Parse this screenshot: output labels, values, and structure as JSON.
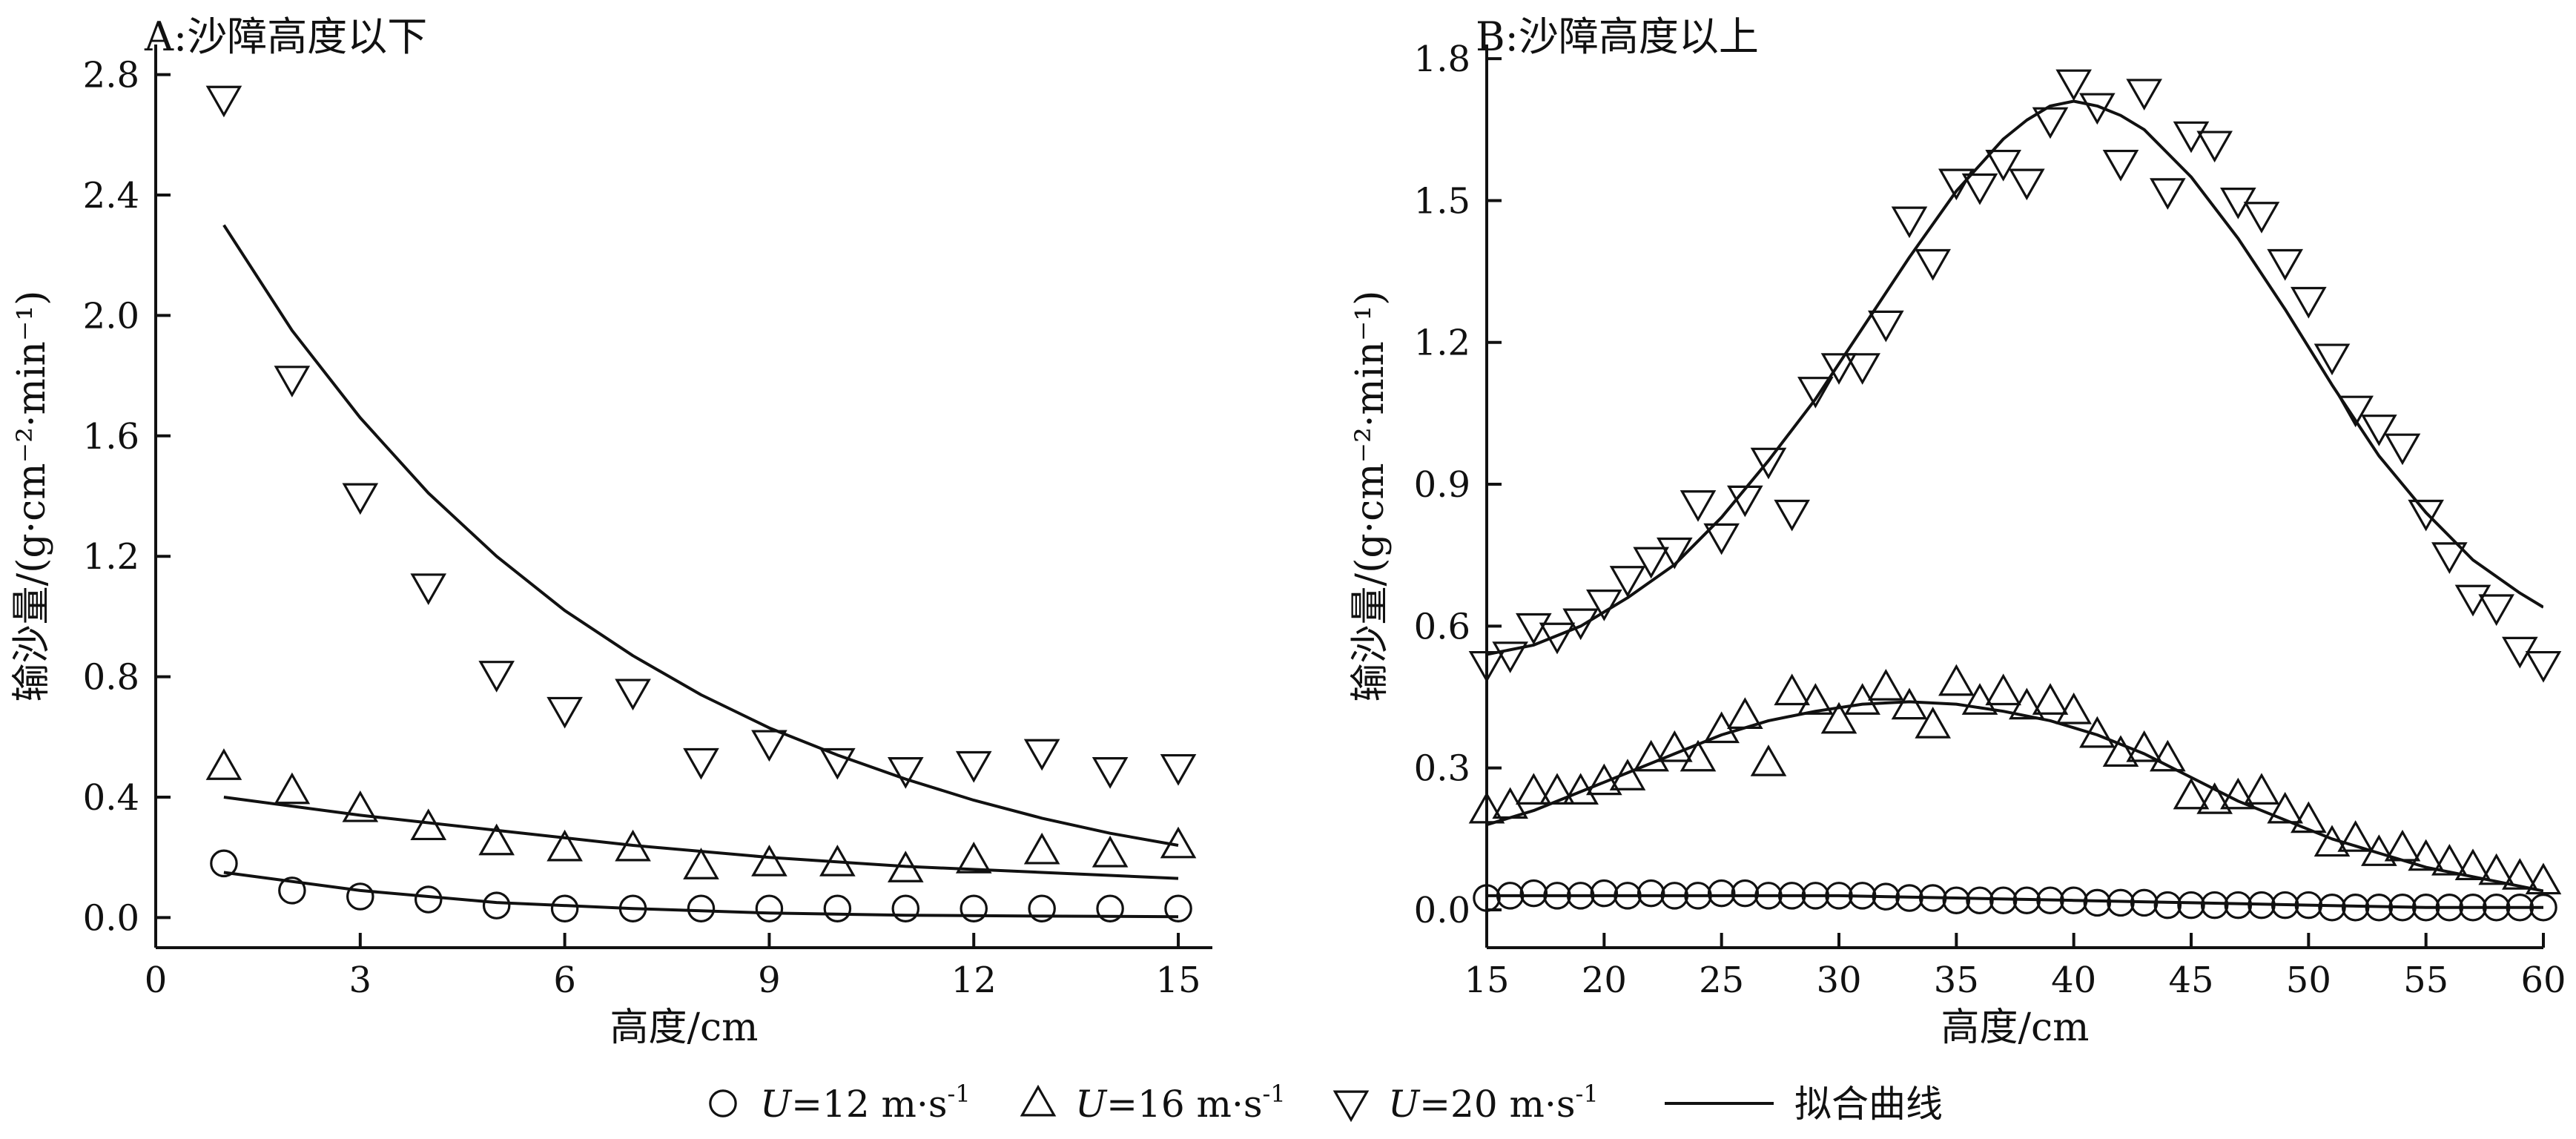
{
  "chart_data": [
    {
      "type": "scatter",
      "title": "A:沙障高度以下",
      "xlabel": "高度/cm",
      "ylabel": "输沙量/(g·cm⁻²·min⁻¹)",
      "xlim": [
        0,
        15.5
      ],
      "ylim": [
        -0.1,
        2.9
      ],
      "xticks": [
        0,
        3,
        6,
        9,
        12,
        15
      ],
      "xtick_labels": [
        "0",
        "3",
        "6",
        "9",
        "12",
        "15"
      ],
      "yticks": [
        0,
        0.4,
        0.8,
        1.2,
        1.6,
        2.0,
        2.4,
        2.8
      ],
      "ytick_labels": [
        "0.0",
        "0.4",
        "0.8",
        "1.2",
        "1.6",
        "2.0",
        "2.4",
        "2.8"
      ],
      "series": [
        {
          "name": "U=12 m·s⁻¹",
          "marker": "circle",
          "x": [
            1,
            2,
            3,
            4,
            5,
            6,
            7,
            8,
            9,
            10,
            11,
            12,
            13,
            14,
            15
          ],
          "y": [
            0.18,
            0.09,
            0.07,
            0.06,
            0.04,
            0.03,
            0.03,
            0.03,
            0.03,
            0.03,
            0.03,
            0.03,
            0.03,
            0.03,
            0.03
          ]
        },
        {
          "name": "U=16 m·s⁻¹",
          "marker": "triangle-up",
          "x": [
            1,
            2,
            3,
            4,
            5,
            6,
            7,
            8,
            9,
            10,
            11,
            12,
            13,
            14,
            15
          ],
          "y": [
            0.5,
            0.42,
            0.36,
            0.3,
            0.25,
            0.23,
            0.23,
            0.17,
            0.18,
            0.18,
            0.16,
            0.19,
            0.22,
            0.21,
            0.24
          ]
        },
        {
          "name": "U=20 m·s⁻¹",
          "marker": "triangle-down",
          "x": [
            1,
            2,
            3,
            4,
            5,
            6,
            7,
            8,
            9,
            10,
            11,
            12,
            13,
            14,
            15
          ],
          "y": [
            2.72,
            1.79,
            1.4,
            1.1,
            0.81,
            0.69,
            0.75,
            0.52,
            0.58,
            0.52,
            0.49,
            0.51,
            0.55,
            0.49,
            0.5
          ]
        }
      ],
      "fit_curves": [
        {
          "series": "U=12 m·s⁻¹",
          "x": [
            1,
            3,
            5,
            7,
            9,
            11,
            13,
            15
          ],
          "y": [
            0.15,
            0.09,
            0.05,
            0.03,
            0.015,
            0.008,
            0.005,
            0.003
          ]
        },
        {
          "series": "U=16 m·s⁻¹",
          "x": [
            1,
            3,
            5,
            7,
            9,
            11,
            13,
            15
          ],
          "y": [
            0.4,
            0.34,
            0.29,
            0.24,
            0.2,
            0.17,
            0.15,
            0.13
          ]
        },
        {
          "series": "U=20 m·s⁻¹",
          "x": [
            1,
            2,
            3,
            4,
            5,
            6,
            7,
            8,
            9,
            10,
            11,
            12,
            13,
            14,
            15
          ],
          "y": [
            2.3,
            1.95,
            1.66,
            1.41,
            1.2,
            1.02,
            0.87,
            0.74,
            0.63,
            0.54,
            0.46,
            0.39,
            0.33,
            0.28,
            0.24
          ]
        }
      ]
    },
    {
      "type": "scatter",
      "title": "B:沙障高度以上",
      "xlabel": "高度/cm",
      "ylabel": "输沙量/(g·cm⁻²·min⁻¹)",
      "xlim": [
        15,
        60
      ],
      "ylim": [
        -0.08,
        1.83
      ],
      "xticks": [
        15,
        20,
        25,
        30,
        35,
        40,
        45,
        50,
        55,
        60
      ],
      "xtick_labels": [
        "15",
        "20",
        "25",
        "30",
        "35",
        "40",
        "45",
        "50",
        "55",
        "60"
      ],
      "yticks": [
        0,
        0.3,
        0.6,
        0.9,
        1.2,
        1.5,
        1.8
      ],
      "ytick_labels": [
        "0.0",
        "0.3",
        "0.6",
        "0.9",
        "1.2",
        "1.5",
        "1.8"
      ],
      "series": [
        {
          "name": "U=12 m·s⁻¹",
          "marker": "circle",
          "x": [
            15,
            16,
            17,
            18,
            19,
            20,
            21,
            22,
            23,
            24,
            25,
            26,
            27,
            28,
            29,
            30,
            31,
            32,
            33,
            34,
            35,
            36,
            37,
            38,
            39,
            40,
            41,
            42,
            43,
            44,
            45,
            46,
            47,
            48,
            49,
            50,
            51,
            52,
            53,
            54,
            55,
            56,
            57,
            58,
            59,
            60
          ],
          "y": [
            0.025,
            0.03,
            0.035,
            0.03,
            0.03,
            0.035,
            0.03,
            0.035,
            0.03,
            0.03,
            0.035,
            0.035,
            0.03,
            0.03,
            0.03,
            0.03,
            0.03,
            0.028,
            0.025,
            0.025,
            0.02,
            0.02,
            0.02,
            0.02,
            0.02,
            0.02,
            0.015,
            0.015,
            0.015,
            0.01,
            0.01,
            0.01,
            0.01,
            0.01,
            0.01,
            0.01,
            0.005,
            0.005,
            0.005,
            0.005,
            0.005,
            0.005,
            0.005,
            0.005,
            0.005,
            0.005
          ]
        },
        {
          "name": "U=16 m·s⁻¹",
          "marker": "triangle-up",
          "x": [
            15,
            16,
            17,
            18,
            19,
            20,
            21,
            22,
            23,
            24,
            25,
            26,
            27,
            28,
            29,
            30,
            31,
            32,
            33,
            34,
            35,
            36,
            37,
            38,
            39,
            40,
            41,
            42,
            43,
            44,
            45,
            46,
            47,
            48,
            49,
            50,
            51,
            52,
            53,
            54,
            55,
            56,
            57,
            58,
            59,
            60
          ],
          "y": [
            0.21,
            0.22,
            0.25,
            0.25,
            0.25,
            0.27,
            0.28,
            0.32,
            0.34,
            0.32,
            0.38,
            0.41,
            0.31,
            0.46,
            0.44,
            0.4,
            0.44,
            0.47,
            0.43,
            0.39,
            0.48,
            0.44,
            0.46,
            0.43,
            0.44,
            0.42,
            0.37,
            0.33,
            0.34,
            0.32,
            0.24,
            0.23,
            0.24,
            0.25,
            0.21,
            0.19,
            0.14,
            0.15,
            0.12,
            0.13,
            0.11,
            0.1,
            0.09,
            0.08,
            0.07,
            0.06
          ]
        },
        {
          "name": "U=20 m·s⁻¹",
          "marker": "triangle-down",
          "x": [
            15,
            16,
            17,
            18,
            19,
            20,
            21,
            22,
            23,
            24,
            25,
            26,
            27,
            28,
            29,
            30,
            31,
            32,
            33,
            34,
            35,
            36,
            37,
            38,
            39,
            40,
            41,
            42,
            43,
            44,
            45,
            46,
            47,
            48,
            49,
            50,
            51,
            52,
            53,
            54,
            55,
            56,
            57,
            58,
            59,
            60
          ],
          "y": [
            0.52,
            0.54,
            0.6,
            0.58,
            0.61,
            0.65,
            0.7,
            0.74,
            0.76,
            0.86,
            0.79,
            0.87,
            0.95,
            0.84,
            1.1,
            1.15,
            1.15,
            1.24,
            1.46,
            1.37,
            1.54,
            1.53,
            1.58,
            1.54,
            1.67,
            1.75,
            1.7,
            1.58,
            1.73,
            1.52,
            1.64,
            1.62,
            1.5,
            1.47,
            1.37,
            1.29,
            1.17,
            1.06,
            1.02,
            0.98,
            0.84,
            0.75,
            0.66,
            0.64,
            0.55,
            0.52
          ]
        }
      ],
      "fit_curves": [
        {
          "series": "U=12 m·s⁻¹",
          "x": [
            15,
            20,
            25,
            30,
            35,
            40,
            45,
            50,
            55,
            60
          ],
          "y": [
            0.03,
            0.03,
            0.03,
            0.03,
            0.025,
            0.02,
            0.015,
            0.01,
            0.005,
            0.005
          ]
        },
        {
          "series": "U=16 m·s⁻¹",
          "x": [
            15,
            17,
            19,
            21,
            23,
            25,
            27,
            29,
            31,
            33,
            35,
            37,
            39,
            41,
            43,
            45,
            47,
            49,
            51,
            53,
            55,
            57,
            59,
            60
          ],
          "y": [
            0.18,
            0.21,
            0.25,
            0.29,
            0.33,
            0.37,
            0.4,
            0.42,
            0.435,
            0.44,
            0.435,
            0.42,
            0.4,
            0.37,
            0.33,
            0.28,
            0.23,
            0.19,
            0.15,
            0.12,
            0.09,
            0.07,
            0.05,
            0.04
          ]
        },
        {
          "series": "U=20 m·s⁻¹",
          "x": [
            15,
            17,
            19,
            21,
            23,
            25,
            27,
            29,
            31,
            33,
            35,
            37,
            38,
            39,
            40,
            41,
            42,
            43,
            45,
            47,
            49,
            51,
            53,
            55,
            57,
            59,
            60
          ],
          "y": [
            0.54,
            0.56,
            0.6,
            0.66,
            0.73,
            0.83,
            0.95,
            1.08,
            1.23,
            1.38,
            1.52,
            1.63,
            1.67,
            1.7,
            1.71,
            1.7,
            1.68,
            1.65,
            1.55,
            1.42,
            1.27,
            1.11,
            0.96,
            0.84,
            0.74,
            0.67,
            0.64
          ]
        }
      ]
    }
  ],
  "legend": {
    "items": [
      {
        "marker": "circle",
        "prefix": "U",
        "text": "=12 m·s",
        "sup": "-1"
      },
      {
        "marker": "triangle-up",
        "prefix": "U",
        "text": "=16 m·s",
        "sup": "-1"
      },
      {
        "marker": "triangle-down",
        "prefix": "U",
        "text": "=20 m·s",
        "sup": "-1"
      }
    ],
    "fit_label": "拟合曲线"
  }
}
